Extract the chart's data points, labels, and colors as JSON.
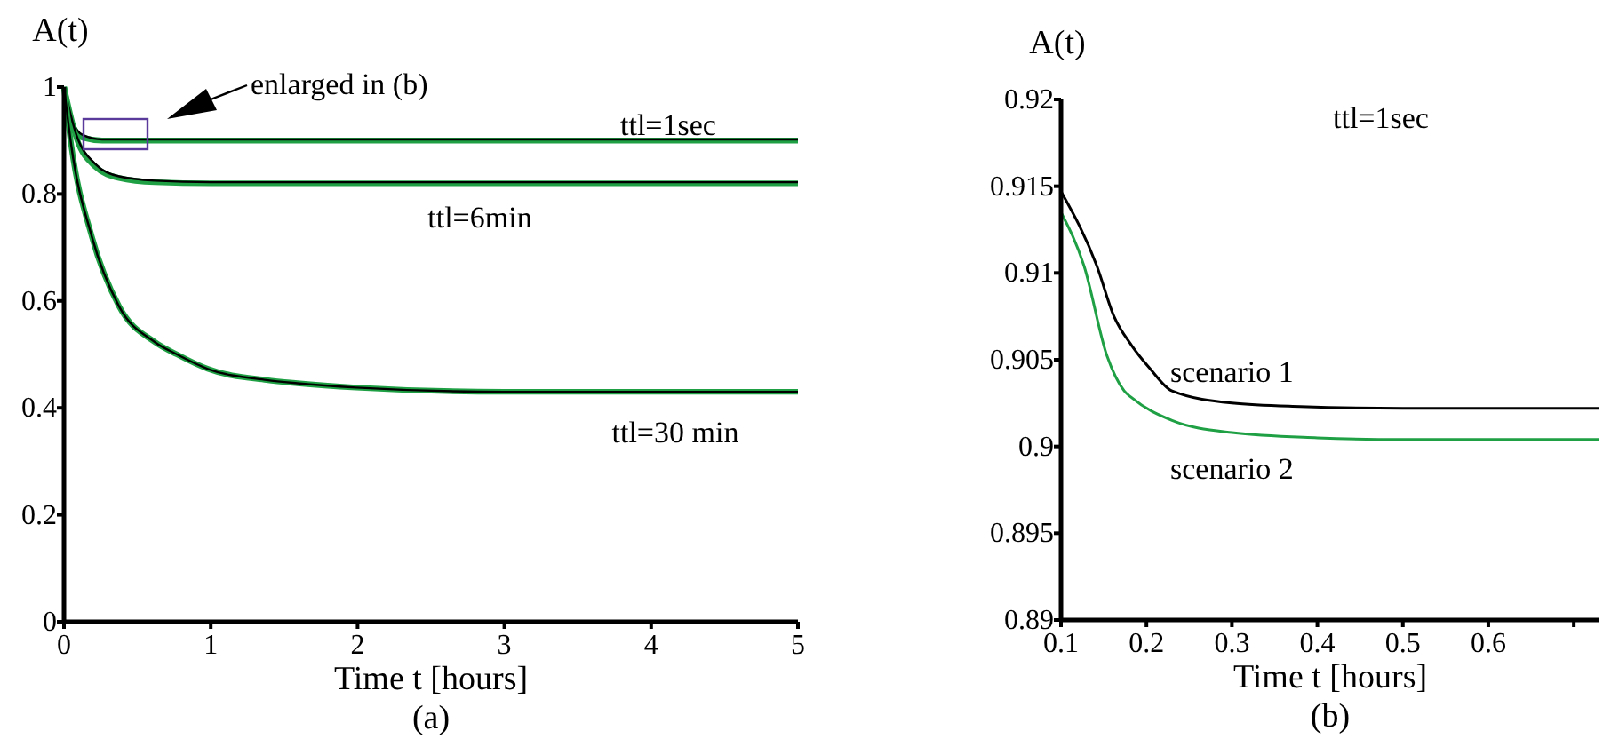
{
  "chart_data": [
    {
      "type": "line",
      "ylabel": "A(t)",
      "xlabel": "Time t [hours]",
      "subtitle": "(a)",
      "xlim": [
        0,
        5
      ],
      "ylim": [
        0,
        1
      ],
      "xticks": [
        0,
        1,
        2,
        3,
        4,
        5
      ],
      "yticks": [
        0,
        0.2,
        0.4,
        0.6,
        0.8,
        1
      ],
      "grid": false,
      "marker": "none",
      "line_style": "solid",
      "annotations": [
        "enlarged in (b)",
        "ttl=1sec",
        "ttl=6min",
        "ttl=30 min"
      ],
      "series": [
        {
          "color": "#1fa045",
          "x": [
            0,
            0.05,
            0.13,
            0.26,
            0.5,
            1,
            5
          ],
          "values": [
            1,
            0.935,
            0.905,
            0.9,
            0.9,
            0.9,
            0.9
          ]
        },
        {
          "color": "#000000",
          "x": [
            0,
            0.05,
            0.13,
            0.26,
            0.5,
            1,
            5
          ],
          "values": [
            1,
            0.94,
            0.91,
            0.902,
            0.902,
            0.902,
            0.902
          ]
        },
        {
          "color": "#1fa045",
          "x": [
            0,
            0.085,
            0.21,
            0.375,
            0.62,
            1,
            5
          ],
          "values": [
            1,
            0.905,
            0.852,
            0.83,
            0.822,
            0.82,
            0.82
          ]
        },
        {
          "color": "#000000",
          "x": [
            0,
            0.085,
            0.21,
            0.375,
            0.62,
            1,
            5
          ],
          "values": [
            1,
            0.91,
            0.857,
            0.833,
            0.825,
            0.822,
            0.822
          ]
        },
        {
          "color": "#1fa045",
          "x": [
            0,
            0.05,
            0.19,
            0.375,
            0.62,
            0.77,
            0.98,
            1.38,
            1.59,
            1.99,
            3,
            5
          ],
          "values": [
            1,
            0.89,
            0.72,
            0.59,
            0.523,
            0.5,
            0.473,
            0.452,
            0.446,
            0.438,
            0.43,
            0.43
          ]
        },
        {
          "color": "#000000",
          "x": [
            0,
            0.05,
            0.19,
            0.375,
            0.62,
            0.77,
            0.98,
            1.38,
            1.59,
            1.99,
            3,
            5
          ],
          "values": [
            1,
            0.89,
            0.72,
            0.59,
            0.523,
            0.5,
            0.473,
            0.452,
            0.446,
            0.438,
            0.43,
            0.43
          ]
        }
      ]
    },
    {
      "type": "line",
      "ylabel": "A(t)",
      "xlabel": "Time t [hours]",
      "subtitle": "(b)",
      "xlim": [
        0.1,
        0.73
      ],
      "ylim": [
        0.89,
        0.92
      ],
      "xticks": [
        0.1,
        0.2,
        0.3,
        0.4,
        0.5,
        0.6,
        {
          "value": 0.7,
          "label": null
        }
      ],
      "yticks": [
        0.89,
        0.895,
        0.9,
        0.905,
        0.91,
        0.915,
        0.92
      ],
      "grid": false,
      "marker": "none",
      "line_style": "solid",
      "annotations": [
        "ttl=1sec"
      ],
      "series": [
        {
          "name": "scenario 1",
          "color": "#000000",
          "x": [
            0.1,
            0.142,
            0.162,
            0.183,
            0.204,
            0.23,
            0.3,
            0.38,
            0.5,
            0.73
          ],
          "values": [
            0.9147,
            0.9104,
            0.9075,
            0.9058,
            0.9045,
            0.9032,
            0.9025,
            0.9023,
            0.9022,
            0.9022
          ]
        },
        {
          "name": "scenario 2",
          "color": "#1fa045",
          "x": [
            0.1,
            0.127,
            0.154,
            0.174,
            0.183,
            0.23,
            0.3,
            0.4,
            0.5,
            0.73
          ],
          "values": [
            0.9135,
            0.9104,
            0.9052,
            0.9032,
            0.9028,
            0.9015,
            0.9008,
            0.9005,
            0.9004,
            0.9004
          ]
        }
      ]
    }
  ]
}
